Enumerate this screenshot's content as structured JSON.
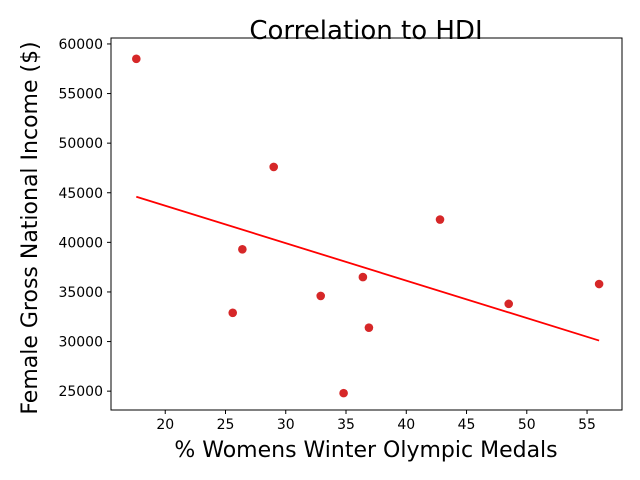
{
  "chart_data": {
    "type": "scatter",
    "title": "Correlation to HDI",
    "xlabel": "% Womens Winter Olympic Medals",
    "ylabel": "Female Gross National Income ($)",
    "xlim": [
      15.5,
      57.9
    ],
    "ylim": [
      23100,
      60600
    ],
    "xticks": [
      20,
      25,
      30,
      35,
      40,
      45,
      50,
      55
    ],
    "yticks": [
      25000,
      30000,
      35000,
      40000,
      45000,
      50000,
      55000,
      60000
    ],
    "grid": false,
    "legend": "none",
    "series": [
      {
        "marker": "circle",
        "color": "#d62728",
        "points": [
          {
            "x": 17.6,
            "y": 58500
          },
          {
            "x": 25.6,
            "y": 32900
          },
          {
            "x": 26.4,
            "y": 39300
          },
          {
            "x": 29.0,
            "y": 47600
          },
          {
            "x": 32.9,
            "y": 34600
          },
          {
            "x": 34.8,
            "y": 24800
          },
          {
            "x": 36.4,
            "y": 36500
          },
          {
            "x": 36.9,
            "y": 31400
          },
          {
            "x": 42.8,
            "y": 42300
          },
          {
            "x": 48.5,
            "y": 33800
          },
          {
            "x": 56.0,
            "y": 35800
          }
        ]
      }
    ],
    "trendline": {
      "color": "#ff0000",
      "points": [
        {
          "x": 17.6,
          "y": 44600
        },
        {
          "x": 56.0,
          "y": 30100
        }
      ]
    }
  }
}
